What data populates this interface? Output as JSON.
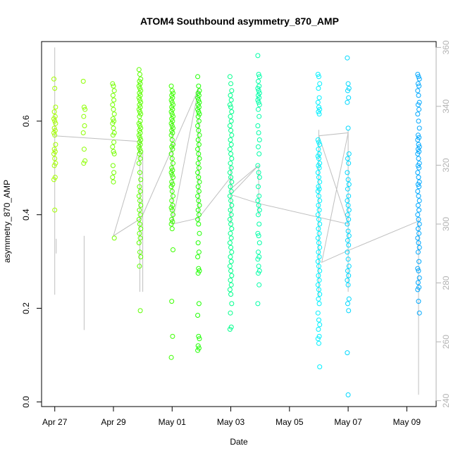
{
  "chart_data": {
    "type": "scatter",
    "title": "ATOM4 Southbound asymmetry_870_AMP",
    "xlabel": "Date",
    "ylabel": "asymmetry_870_AMP",
    "xlim_days": [
      -0.45,
      13.0
    ],
    "ylim": [
      -0.01,
      0.77
    ],
    "ylim_right": [
      238,
      362
    ],
    "x_ticks": [
      {
        "day": 0,
        "label": "Apr 27"
      },
      {
        "day": 2,
        "label": "Apr 29"
      },
      {
        "day": 4,
        "label": "May 01"
      },
      {
        "day": 6,
        "label": "May 03"
      },
      {
        "day": 8,
        "label": "May 05"
      },
      {
        "day": 10,
        "label": "May 07"
      },
      {
        "day": 12,
        "label": "May 09"
      }
    ],
    "y_ticks": [
      "0.0",
      "0.2",
      "0.4",
      "0.6"
    ],
    "y_right_ticks": [
      "240",
      "260",
      "280",
      "300",
      "320",
      "340",
      "360"
    ],
    "series": [
      {
        "name": "Apr 27",
        "x": 0.0,
        "color": "#a3ff00",
        "values": [
          0.69,
          0.67,
          0.63,
          0.62,
          0.61,
          0.605,
          0.6,
          0.595,
          0.585,
          0.58,
          0.575,
          0.57,
          0.55,
          0.54,
          0.535,
          0.53,
          0.52,
          0.51,
          0.505,
          0.48,
          0.475,
          0.41
        ]
      },
      {
        "name": "Apr 28",
        "x": 1.0,
        "color": "#8cff00",
        "values": [
          0.685,
          0.63,
          0.625,
          0.61,
          0.59,
          0.575,
          0.54,
          0.515,
          0.51
        ]
      },
      {
        "name": "Apr 29",
        "x": 2.0,
        "color": "#75ff00",
        "values": [
          0.68,
          0.675,
          0.665,
          0.655,
          0.645,
          0.635,
          0.625,
          0.615,
          0.605,
          0.6,
          0.595,
          0.585,
          0.575,
          0.57,
          0.555,
          0.545,
          0.535,
          0.53,
          0.505,
          0.49,
          0.48,
          0.47,
          0.35
        ]
      },
      {
        "name": "Apr 30",
        "x": 2.9,
        "color": "#5cff00",
        "values": [
          0.71,
          0.7,
          0.69,
          0.685,
          0.68,
          0.675,
          0.67,
          0.665,
          0.66,
          0.655,
          0.65,
          0.645,
          0.64,
          0.635,
          0.63,
          0.625,
          0.62,
          0.615,
          0.61,
          0.6,
          0.595,
          0.59,
          0.585,
          0.58,
          0.575,
          0.57,
          0.565,
          0.56,
          0.555,
          0.55,
          0.545,
          0.54,
          0.535,
          0.53,
          0.52,
          0.51,
          0.49,
          0.475,
          0.46,
          0.45,
          0.44,
          0.43,
          0.42,
          0.41,
          0.4,
          0.39,
          0.38,
          0.37,
          0.36,
          0.35,
          0.34,
          0.32,
          0.31,
          0.29,
          0.195
        ]
      },
      {
        "name": "May 01",
        "x": 4.0,
        "color": "#3cff00",
        "values": [
          0.675,
          0.665,
          0.66,
          0.655,
          0.65,
          0.645,
          0.64,
          0.635,
          0.63,
          0.625,
          0.62,
          0.615,
          0.61,
          0.605,
          0.6,
          0.595,
          0.59,
          0.585,
          0.58,
          0.575,
          0.57,
          0.56,
          0.55,
          0.545,
          0.54,
          0.53,
          0.52,
          0.51,
          0.5,
          0.495,
          0.49,
          0.485,
          0.48,
          0.47,
          0.465,
          0.46,
          0.45,
          0.44,
          0.43,
          0.42,
          0.415,
          0.41,
          0.4,
          0.39,
          0.385,
          0.38,
          0.37,
          0.325,
          0.215,
          0.14,
          0.095
        ]
      },
      {
        "name": "May 02",
        "x": 4.9,
        "color": "#1eff00",
        "values": [
          0.695,
          0.675,
          0.665,
          0.66,
          0.655,
          0.65,
          0.645,
          0.64,
          0.635,
          0.63,
          0.625,
          0.62,
          0.615,
          0.61,
          0.6,
          0.59,
          0.58,
          0.57,
          0.56,
          0.55,
          0.54,
          0.53,
          0.52,
          0.51,
          0.5,
          0.49,
          0.48,
          0.47,
          0.46,
          0.45,
          0.44,
          0.43,
          0.42,
          0.41,
          0.4,
          0.39,
          0.38,
          0.36,
          0.34,
          0.32,
          0.31,
          0.285,
          0.28,
          0.275,
          0.21,
          0.185,
          0.14,
          0.135,
          0.12,
          0.115,
          0.11
        ]
      },
      {
        "name": "May 03",
        "x": 6.0,
        "color": "#00ff8c",
        "values": [
          0.695,
          0.68,
          0.665,
          0.655,
          0.645,
          0.635,
          0.63,
          0.62,
          0.61,
          0.6,
          0.59,
          0.58,
          0.57,
          0.56,
          0.55,
          0.54,
          0.53,
          0.52,
          0.51,
          0.5,
          0.49,
          0.48,
          0.47,
          0.46,
          0.45,
          0.44,
          0.43,
          0.42,
          0.41,
          0.4,
          0.39,
          0.38,
          0.37,
          0.36,
          0.35,
          0.34,
          0.33,
          0.32,
          0.31,
          0.3,
          0.29,
          0.28,
          0.27,
          0.26,
          0.25,
          0.24,
          0.23,
          0.21,
          0.19,
          0.16,
          0.155
        ]
      },
      {
        "name": "May 04",
        "x": 6.95,
        "color": "#00ffa8",
        "values": [
          0.74,
          0.7,
          0.695,
          0.685,
          0.675,
          0.67,
          0.665,
          0.66,
          0.655,
          0.65,
          0.645,
          0.64,
          0.635,
          0.625,
          0.61,
          0.59,
          0.575,
          0.56,
          0.545,
          0.53,
          0.505,
          0.49,
          0.48,
          0.46,
          0.44,
          0.43,
          0.42,
          0.41,
          0.4,
          0.38,
          0.36,
          0.355,
          0.34,
          0.32,
          0.31,
          0.305,
          0.29,
          0.28,
          0.275,
          0.25,
          0.21
        ]
      },
      {
        "name": "May 06",
        "x": 9.0,
        "color": "#00f0ff",
        "values": [
          0.7,
          0.695,
          0.68,
          0.67,
          0.65,
          0.64,
          0.63,
          0.625,
          0.62,
          0.615,
          0.56,
          0.555,
          0.55,
          0.54,
          0.53,
          0.525,
          0.52,
          0.51,
          0.505,
          0.5,
          0.49,
          0.48,
          0.47,
          0.46,
          0.455,
          0.45,
          0.44,
          0.43,
          0.42,
          0.41,
          0.4,
          0.39,
          0.38,
          0.37,
          0.36,
          0.35,
          0.34,
          0.33,
          0.32,
          0.31,
          0.3,
          0.29,
          0.28,
          0.27,
          0.26,
          0.25,
          0.24,
          0.23,
          0.22,
          0.21,
          0.19,
          0.175,
          0.165,
          0.155,
          0.14,
          0.135,
          0.125,
          0.075
        ]
      },
      {
        "name": "May 07",
        "x": 10.0,
        "color": "#00d8ff",
        "values": [
          0.735,
          0.68,
          0.67,
          0.665,
          0.65,
          0.64,
          0.585,
          0.53,
          0.52,
          0.51,
          0.49,
          0.475,
          0.465,
          0.455,
          0.44,
          0.43,
          0.42,
          0.41,
          0.4,
          0.39,
          0.38,
          0.365,
          0.355,
          0.345,
          0.335,
          0.32,
          0.305,
          0.29,
          0.28,
          0.27,
          0.26,
          0.25,
          0.22,
          0.21,
          0.195,
          0.105,
          0.015
        ]
      },
      {
        "name": "May 09",
        "x": 12.4,
        "color": "#00a8ff",
        "values": [
          0.7,
          0.695,
          0.69,
          0.68,
          0.675,
          0.665,
          0.655,
          0.64,
          0.635,
          0.625,
          0.615,
          0.6,
          0.585,
          0.57,
          0.565,
          0.56,
          0.55,
          0.545,
          0.54,
          0.535,
          0.53,
          0.52,
          0.51,
          0.505,
          0.5,
          0.49,
          0.48,
          0.47,
          0.465,
          0.46,
          0.45,
          0.44,
          0.43,
          0.42,
          0.41,
          0.4,
          0.39,
          0.38,
          0.37,
          0.36,
          0.35,
          0.34,
          0.33,
          0.32,
          0.3,
          0.285,
          0.28,
          0.265,
          0.255,
          0.245,
          0.24,
          0.215,
          0.19
        ]
      }
    ],
    "overlay_line": {
      "color": "#bfbfbf",
      "axis": "right",
      "points": [
        [
          0.0,
          330
        ],
        [
          2.95,
          328
        ],
        [
          2.0,
          296
        ],
        [
          2.95,
          302
        ],
        [
          4.9,
          346
        ],
        [
          4.0,
          300
        ],
        [
          4.9,
          302
        ],
        [
          6.0,
          316
        ],
        [
          6.0,
          312
        ],
        [
          6.95,
          320
        ],
        [
          6.0,
          310
        ],
        [
          6.95,
          307
        ],
        [
          10.0,
          300
        ],
        [
          9.0,
          330
        ],
        [
          10.0,
          331
        ],
        [
          9.1,
          287
        ],
        [
          10.0,
          291
        ],
        [
          12.4,
          301
        ]
      ],
      "spikes": [
        {
          "x": 0.0,
          "top": 360,
          "bottom": 276
        },
        {
          "x": 0.05,
          "top": 295,
          "bottom": 290
        },
        {
          "x": 1.0,
          "top": 296,
          "bottom": 264
        },
        {
          "x": 2.9,
          "top": 330,
          "bottom": 277
        },
        {
          "x": 3.0,
          "top": 325,
          "bottom": 277
        },
        {
          "x": 4.0,
          "top": 335,
          "bottom": 301
        },
        {
          "x": 4.9,
          "top": 336,
          "bottom": 301
        },
        {
          "x": 6.0,
          "top": 320,
          "bottom": 300
        },
        {
          "x": 6.95,
          "top": 320,
          "bottom": 303
        },
        {
          "x": 9.0,
          "top": 332,
          "bottom": 275
        },
        {
          "x": 10.0,
          "top": 332,
          "bottom": 277
        },
        {
          "x": 12.4,
          "top": 302,
          "bottom": 242
        }
      ]
    }
  }
}
